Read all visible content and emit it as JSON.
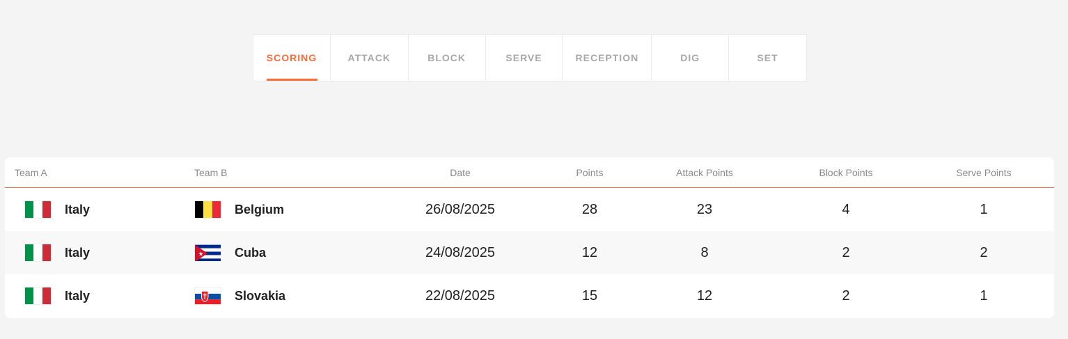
{
  "tabs": [
    {
      "label": "SCORING",
      "active": true
    },
    {
      "label": "ATTACK"
    },
    {
      "label": "BLOCK"
    },
    {
      "label": "SERVE"
    },
    {
      "label": "RECEPTION"
    },
    {
      "label": "DIG"
    },
    {
      "label": "SET"
    }
  ],
  "accent": "#ff6b35",
  "table": {
    "headers": {
      "team_a": "Team A",
      "team_b": "Team B",
      "date": "Date",
      "points": "Points",
      "attack": "Attack Points",
      "block": "Block Points",
      "serve": "Serve Points"
    },
    "rows": [
      {
        "team_a": "Italy",
        "team_a_flag": "italy-flag",
        "team_b": "Belgium",
        "team_b_flag": "belgium-flag",
        "date": "26/08/2025",
        "points": "28",
        "attack": "23",
        "block": "4",
        "serve": "1"
      },
      {
        "team_a": "Italy",
        "team_a_flag": "italy-flag",
        "team_b": "Cuba",
        "team_b_flag": "cuba-flag",
        "date": "24/08/2025",
        "points": "12",
        "attack": "8",
        "block": "2",
        "serve": "2"
      },
      {
        "team_a": "Italy",
        "team_a_flag": "italy-flag",
        "team_b": "Slovakia",
        "team_b_flag": "slovakia-flag",
        "date": "22/08/2025",
        "points": "15",
        "attack": "12",
        "block": "2",
        "serve": "1"
      }
    ]
  }
}
